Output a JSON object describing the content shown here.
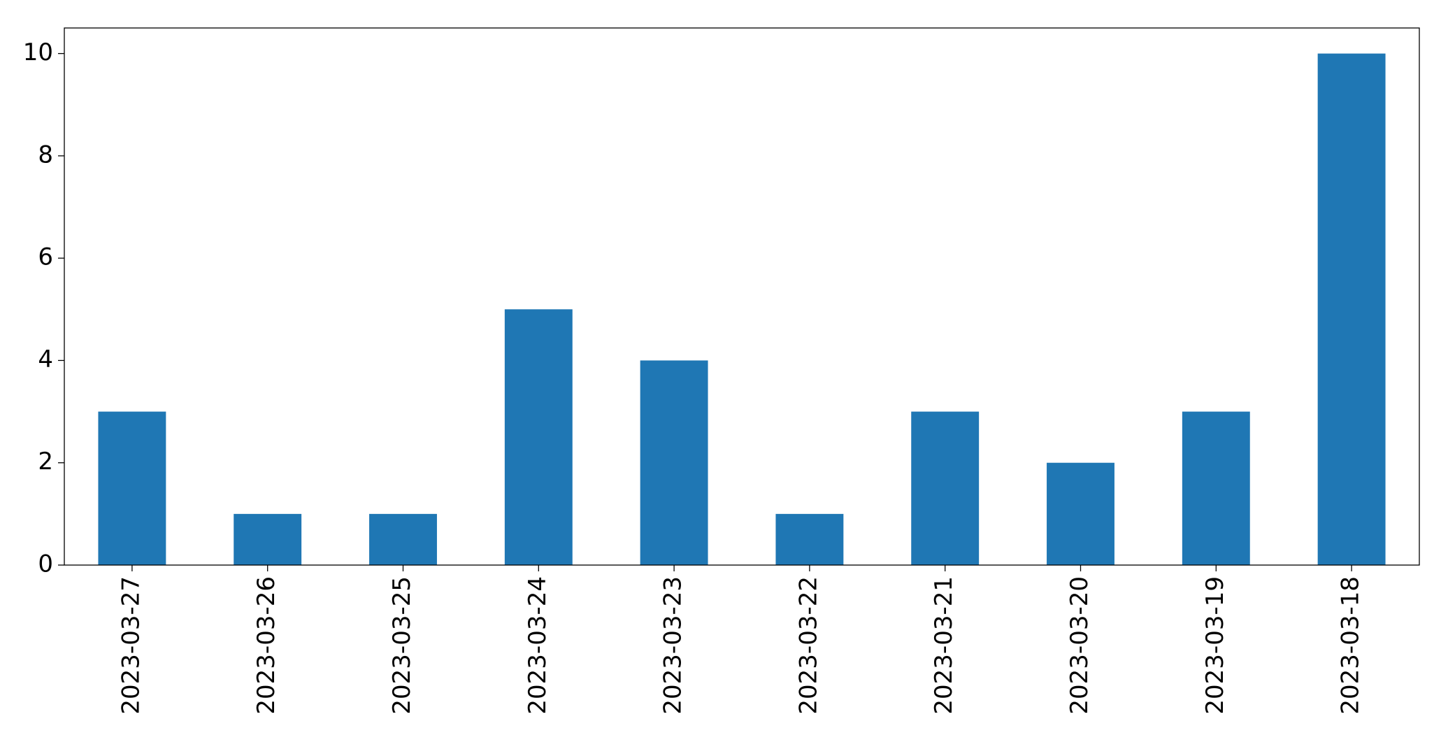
{
  "chart_data": {
    "type": "bar",
    "categories": [
      "2023-03-27",
      "2023-03-26",
      "2023-03-25",
      "2023-03-24",
      "2023-03-23",
      "2023-03-22",
      "2023-03-21",
      "2023-03-20",
      "2023-03-19",
      "2023-03-18"
    ],
    "values": [
      3,
      1,
      1,
      5,
      4,
      1,
      3,
      2,
      3,
      10
    ],
    "color": "#1f77b4",
    "ylim": [
      0,
      10.5
    ],
    "yticks": [
      0,
      2,
      4,
      6,
      8,
      10
    ],
    "grid": false
  }
}
